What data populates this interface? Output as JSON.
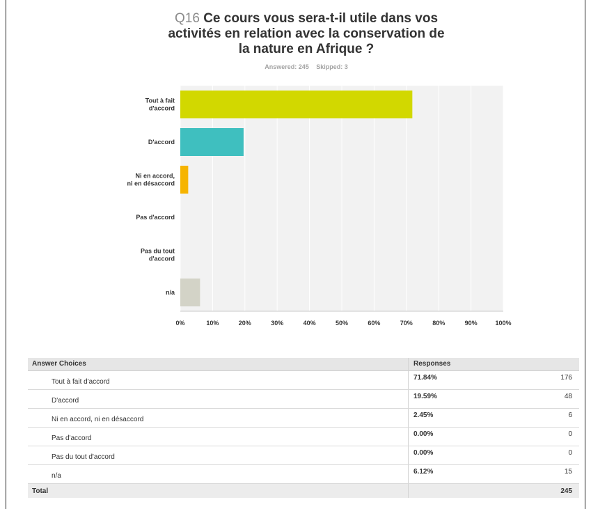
{
  "question": {
    "number": "Q16",
    "text": "Ce cours vous sera-t-il utile dans vos activités en relation avec la conservation de la nature en Afrique ?",
    "title_lines": [
      "Ce cours vous sera-t-il utile dans vos",
      "activités en relation avec la conservation de",
      "la nature en Afrique ?"
    ],
    "answered": "Answered: 245",
    "skipped": "Skipped: 3"
  },
  "chart_data": {
    "type": "bar",
    "orientation": "horizontal",
    "categories": [
      "Tout à fait d'accord",
      "D'accord",
      "Ni en accord, ni en désaccord",
      "Pas d'accord",
      "Pas du tout d'accord",
      "n/a"
    ],
    "category_label_lines": [
      [
        "Tout à fait",
        "d'accord"
      ],
      [
        "D'accord"
      ],
      [
        "Ni en accord,",
        "ni en désaccord"
      ],
      [
        "Pas d'accord"
      ],
      [
        "Pas du tout",
        "d'accord"
      ],
      [
        "n/a"
      ]
    ],
    "values": [
      71.84,
      19.59,
      2.45,
      0.0,
      0.0,
      6.12
    ],
    "bar_colors": [
      "#d2d800",
      "#3fbfbf",
      "#f6b400",
      "#999999",
      "#999999",
      "#d3d3c7"
    ],
    "xlim": [
      0,
      100
    ],
    "x_ticks": [
      "0%",
      "10%",
      "20%",
      "30%",
      "40%",
      "50%",
      "60%",
      "70%",
      "80%",
      "90%",
      "100%"
    ],
    "grid": true,
    "plot_background": "#f2f2f2",
    "xlabel": "",
    "ylabel": ""
  },
  "table": {
    "headers": [
      "Answer Choices",
      "Responses"
    ],
    "rows": [
      {
        "label": "Tout à fait d'accord",
        "percent": "71.84%",
        "count": "176"
      },
      {
        "label": "D'accord",
        "percent": "19.59%",
        "count": "48"
      },
      {
        "label": "Ni en accord, ni en désaccord",
        "percent": "2.45%",
        "count": "6"
      },
      {
        "label": "Pas d'accord",
        "percent": "0.00%",
        "count": "0"
      },
      {
        "label": "Pas du tout d'accord",
        "percent": "0.00%",
        "count": "0"
      },
      {
        "label": "n/a",
        "percent": "6.12%",
        "count": "15"
      }
    ],
    "total_label": "Total",
    "total_count": "245"
  }
}
